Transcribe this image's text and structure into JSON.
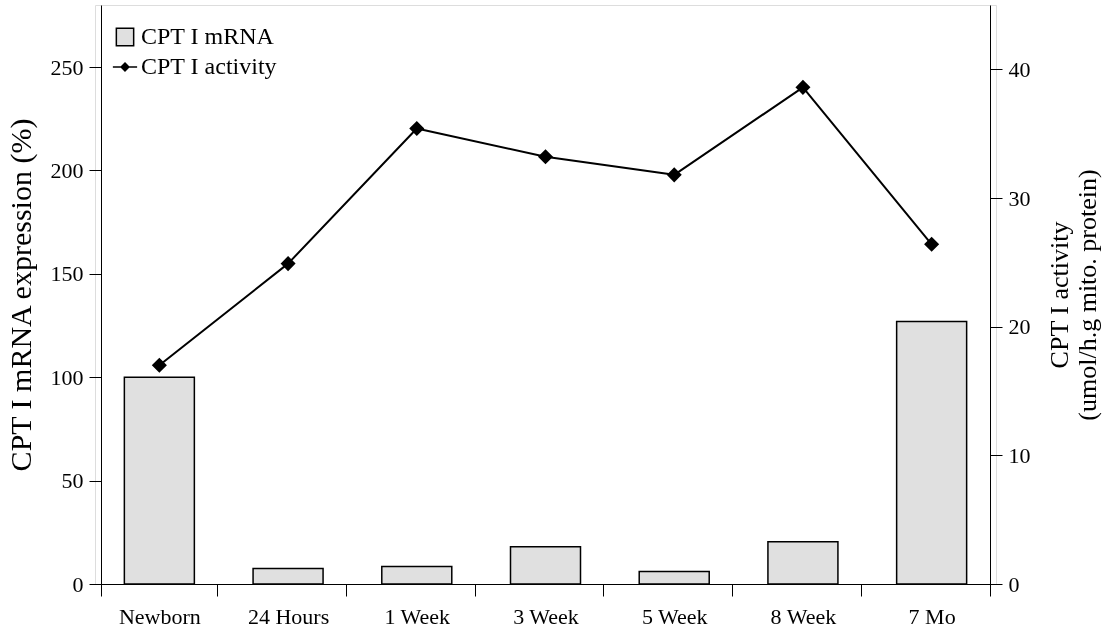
{
  "chart_data": {
    "type": "bar",
    "categories": [
      "Newborn",
      "24 Hours",
      "1 Week",
      "3 Week",
      "5 Week",
      "8 Week",
      "7 Mo"
    ],
    "ylabel": "CPT I mRNA expression (%)",
    "y2label": "CPT I activity\n(umol/h.g mito. protein)",
    "series": [
      {
        "name": "CPT I mRNA",
        "color": "#e0e0e0",
        "values": [
          100,
          7.5,
          8.5,
          18,
          6,
          20.4,
          127
        ]
      },
      {
        "name": "CPT I activity",
        "type": "line",
        "axis": "y2",
        "color": "#000000",
        "marker": "diamond",
        "values": [
          17.0,
          24.9,
          35.4,
          33.2,
          31.8,
          38.6,
          26.4
        ]
      }
    ],
    "ylim": [
      0,
      280
    ],
    "yticks": [
      0,
      50,
      100,
      150,
      200,
      250
    ],
    "y2lim": [
      0,
      45
    ],
    "y2ticks": [
      0,
      10,
      20,
      30,
      40
    ],
    "grid": false,
    "legend": "top left"
  }
}
